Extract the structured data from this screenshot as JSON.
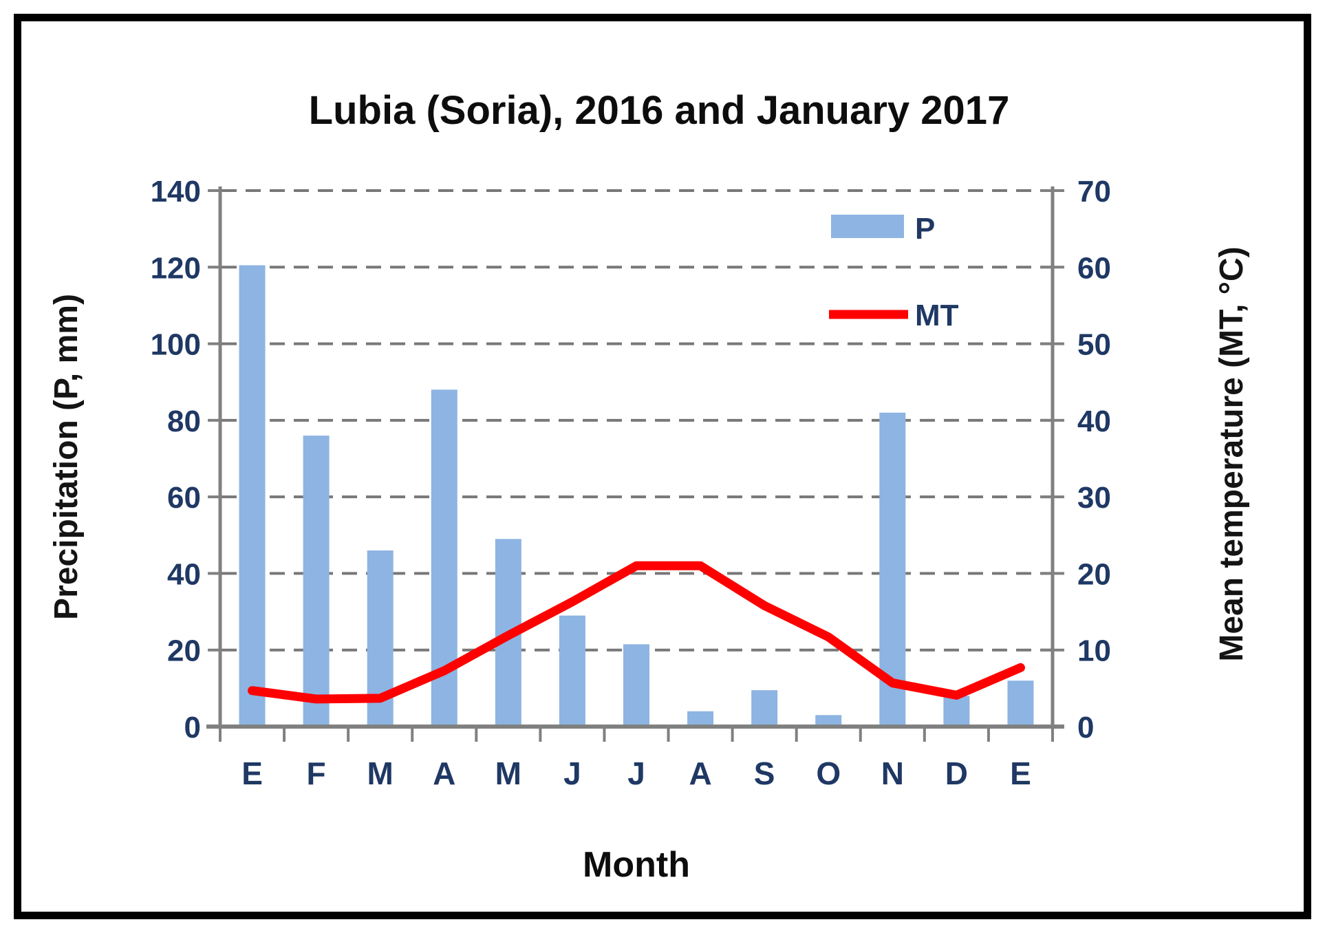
{
  "chart_data": {
    "type": "bar+line-combo",
    "title": "Lubia (Soria), 2016 and January 2017",
    "xlabel": "Month",
    "categories": [
      "E",
      "F",
      "M",
      "A",
      "M",
      "J",
      "J",
      "A",
      "S",
      "O",
      "N",
      "D",
      "E"
    ],
    "series": [
      {
        "name": "P",
        "type": "bar",
        "axis": "left",
        "color": "#8DB4E2",
        "values": [
          120.5,
          76,
          46,
          88,
          49,
          29,
          21.5,
          4,
          9.5,
          3,
          82,
          8,
          12
        ]
      },
      {
        "name": "MT",
        "type": "line",
        "axis": "right",
        "color": "#FE0000",
        "values": [
          4.7,
          3.6,
          3.7,
          7.3,
          11.9,
          16.3,
          21,
          21,
          15.8,
          11.7,
          5.7,
          4.1,
          7.7
        ]
      }
    ],
    "left_axis": {
      "label": "Precipitation (P, mm)",
      "min": 0,
      "max": 140,
      "tick_step": 20,
      "ticks": [
        0,
        20,
        40,
        60,
        80,
        100,
        120,
        140
      ]
    },
    "right_axis": {
      "label": "Mean temperature (MT, °C)",
      "min": 0,
      "max": 70,
      "tick_step": 10,
      "ticks": [
        0,
        10,
        20,
        30,
        40,
        50,
        60,
        70
      ]
    },
    "legend": {
      "position": "upper-right-inside",
      "entries": [
        "P",
        "MT"
      ]
    },
    "grid": "horizontal-dashed"
  },
  "colors": {
    "bar": "#8DB4E2",
    "line": "#FE0000",
    "grid": "#787878",
    "axis": "#808080",
    "tick_label": "#1F3864",
    "title": "#0d0d0d",
    "background": "#ffffff"
  }
}
